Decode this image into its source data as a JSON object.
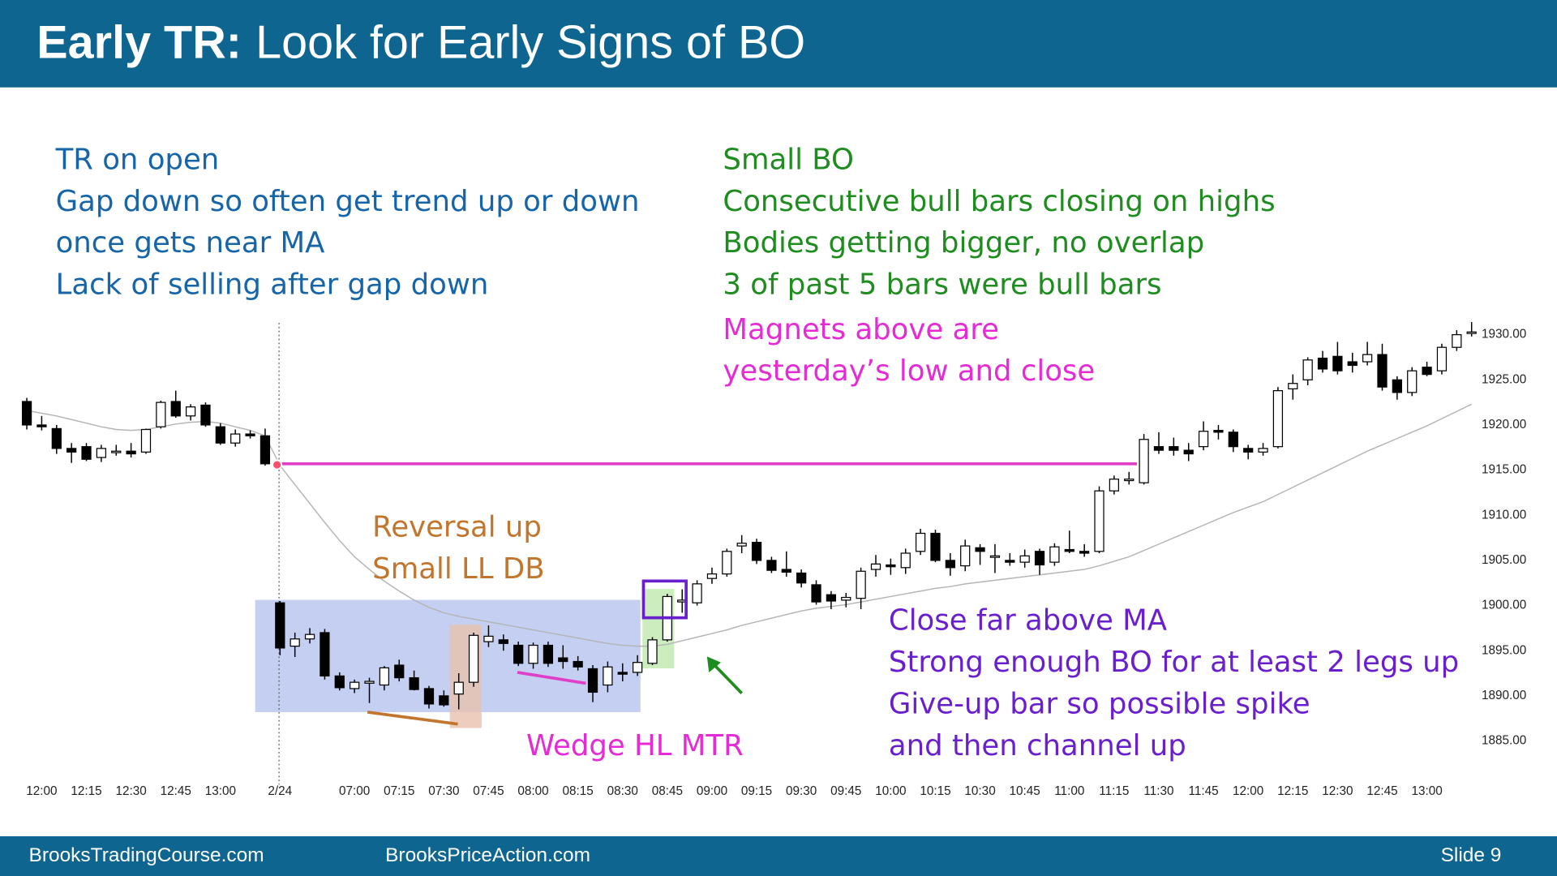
{
  "header": {
    "title_lead": "Early TR:",
    "title": "Look for Early Signs of BO"
  },
  "footer": {
    "left": "BrooksTradingCourse.com",
    "center": "BrooksPriceAction.com",
    "right": "Slide  9"
  },
  "chart_data": {
    "type": "candlestick",
    "categories": [
      null,
      "12:00",
      null,
      null,
      "12:15",
      null,
      null,
      "12:30",
      null,
      null,
      "12:45",
      null,
      null,
      "13:00",
      null,
      null,
      null,
      "2/24",
      null,
      null,
      null,
      null,
      "07:00",
      null,
      null,
      "07:15",
      null,
      null,
      "07:30",
      null,
      null,
      "07:45",
      null,
      null,
      "08:00",
      null,
      null,
      "08:15",
      null,
      null,
      "08:30",
      null,
      null,
      "08:45",
      null,
      null,
      "09:00",
      null,
      null,
      "09:15",
      null,
      null,
      "09:30",
      null,
      null,
      "09:45",
      null,
      null,
      "10:00",
      null,
      null,
      "10:15",
      null,
      null,
      "10:30",
      null,
      null,
      "10:45",
      null,
      null,
      "11:00",
      null,
      null,
      "11:15",
      null,
      null,
      "11:30",
      null,
      null,
      "11:45",
      null,
      null,
      "12:00",
      null,
      null,
      "12:15",
      null,
      null,
      "12:30",
      null,
      null,
      "12:45",
      null,
      null,
      "13:00",
      null,
      null,
      null
    ],
    "open": [
      1922.6,
      1920,
      1919.6,
      1917.4,
      1917.6,
      1916.4,
      1917,
      1917.1,
      1917,
      1919.8,
      1922.6,
      1921,
      1922.2,
      1919.8,
      1918,
      1919,
      1918.8,
      1900.3,
      1895.5,
      1896.3,
      1897,
      1892.2,
      1890.8,
      1891.4,
      1891.2,
      1893.4,
      1892,
      1890.8,
      1890,
      1890.2,
      1891.5,
      1896,
      1896.2,
      1895.6,
      1893.6,
      1895.6,
      1894.2,
      1893.8,
      1893,
      1891.2,
      1892.6,
      1892.6,
      1893.6,
      1896.2,
      1900.4,
      1900.3,
      1903,
      1903.5,
      1906.6,
      1907,
      1905,
      1904,
      1903.6,
      1902.3,
      1901.2,
      1900.6,
      1900.8,
      1904,
      1904.5,
      1904.2,
      1906,
      1908,
      1905,
      1904.4,
      1906.4,
      1905.4,
      1905,
      1904.8,
      1906,
      1904.8,
      1906.2,
      1906,
      1906,
      1912.7,
      1914,
      1913.6,
      1917.6,
      1917.6,
      1917.2,
      1917.6,
      1919.4,
      1919.2,
      1917.4,
      1917,
      1917.6,
      1924,
      1925,
      1927.4,
      1927.6,
      1927,
      1927,
      1927.8,
      1925,
      1923.6,
      1926.4,
      1926,
      1928.6,
      1930.2
    ],
    "high": [
      1923,
      1921,
      1920,
      1918,
      1918,
      1917.8,
      1917.8,
      1918,
      1919.6,
      1922.7,
      1923.8,
      1922.3,
      1922.5,
      1920.2,
      1919.5,
      1919.4,
      1919.6,
      1900.5,
      1897,
      1897.5,
      1897.4,
      1892.6,
      1891.8,
      1892,
      1893.3,
      1894,
      1892.8,
      1891.1,
      1890.6,
      1892.5,
      1897,
      1897.8,
      1896.8,
      1896,
      1895.9,
      1896,
      1895.6,
      1894.4,
      1893.4,
      1893.8,
      1893.6,
      1894.5,
      1896.5,
      1901.3,
      1901.8,
      1902.8,
      1904.2,
      1906.3,
      1907.8,
      1907.4,
      1905.4,
      1906,
      1904,
      1902.8,
      1901.6,
      1901.4,
      1904.2,
      1905.6,
      1905.2,
      1906.3,
      1908.5,
      1908.4,
      1905.8,
      1907.3,
      1906.8,
      1906.8,
      1905.8,
      1906.2,
      1906.3,
      1906.9,
      1908.3,
      1906.8,
      1913.2,
      1914.4,
      1914.8,
      1919,
      1919.2,
      1918.6,
      1918,
      1920.4,
      1920,
      1919.5,
      1917.8,
      1918,
      1924.2,
      1925.6,
      1927.5,
      1928.2,
      1929.2,
      1928,
      1929.2,
      1929,
      1925.4,
      1926.4,
      1927,
      1929,
      1930.5,
      1931.4
    ],
    "low": [
      1919.5,
      1919.4,
      1916.8,
      1915.8,
      1916,
      1915.9,
      1916.6,
      1916.4,
      1916.8,
      1919.6,
      1920.8,
      1920.5,
      1919.8,
      1917.8,
      1917.6,
      1918.5,
      1915.5,
      1894.5,
      1894.3,
      1895.8,
      1891.8,
      1890.6,
      1890.3,
      1889.2,
      1890.6,
      1891.6,
      1890.6,
      1888.6,
      1888.8,
      1888.5,
      1891,
      1895.4,
      1895,
      1893.3,
      1893,
      1893.2,
      1893,
      1892.8,
      1889.3,
      1890.4,
      1891.6,
      1892.2,
      1893.4,
      1896,
      1899.2,
      1900,
      1902.4,
      1903.2,
      1905.8,
      1904.6,
      1903.6,
      1903.2,
      1902,
      1900.1,
      1899.6,
      1899.8,
      1899.6,
      1903.2,
      1903.4,
      1903.5,
      1905.6,
      1904.8,
      1903.3,
      1903.8,
      1904.5,
      1903.6,
      1904.4,
      1904.2,
      1903.4,
      1904.4,
      1905.8,
      1905.4,
      1905.8,
      1912.3,
      1913.4,
      1913.4,
      1916.8,
      1916.6,
      1916,
      1917.2,
      1918.4,
      1917,
      1916.2,
      1916.6,
      1917.4,
      1922.8,
      1924.4,
      1925.8,
      1925.6,
      1925.8,
      1926.6,
      1923.8,
      1922.8,
      1923.2,
      1925.4,
      1925.6,
      1928.2,
      1929.8
    ],
    "close": [
      1920,
      1919.8,
      1917.4,
      1917,
      1916.2,
      1917.4,
      1917.1,
      1916.8,
      1919.5,
      1922.5,
      1921,
      1922,
      1920,
      1918,
      1919,
      1918.8,
      1915.7,
      1895.3,
      1896.3,
      1896.8,
      1892.2,
      1890.9,
      1891.5,
      1891.6,
      1893.1,
      1892,
      1890.7,
      1889.1,
      1889,
      1891.5,
      1896.7,
      1896.6,
      1895.8,
      1893.6,
      1895.6,
      1893.6,
      1893.8,
      1893.2,
      1890.4,
      1893.2,
      1892.4,
      1893.7,
      1896.2,
      1901,
      1900.6,
      1902.4,
      1903.5,
      1906,
      1906.9,
      1905,
      1903.9,
      1903.7,
      1902.5,
      1900.4,
      1900.5,
      1900.9,
      1903.8,
      1904.6,
      1904.3,
      1905.8,
      1908,
      1905,
      1904.2,
      1906.6,
      1906,
      1905.5,
      1904.8,
      1905.5,
      1904.5,
      1906.5,
      1906,
      1905.8,
      1912.7,
      1914,
      1914,
      1918.4,
      1917.2,
      1917.2,
      1916.8,
      1919.3,
      1919.2,
      1917.6,
      1917,
      1917.4,
      1923.8,
      1924.6,
      1927.2,
      1926.2,
      1926,
      1926.6,
      1927.8,
      1924.2,
      1923.6,
      1926,
      1925.6,
      1928.6,
      1930,
      1930.3
    ],
    "ma": [
      1921.6,
      1921.3,
      1921,
      1920.6,
      1920.2,
      1919.8,
      1919.5,
      1919.4,
      1919.5,
      1919.8,
      1920.1,
      1920.3,
      1920.4,
      1920.2,
      1919.8,
      1919.4,
      1918.8,
      1915.5,
      1913.4,
      1911.3,
      1909.2,
      1907.2,
      1905.4,
      1904,
      1902.7,
      1901.6,
      1900.6,
      1899.8,
      1899.2,
      1898.8,
      1898.5,
      1898.2,
      1897.9,
      1897.6,
      1897.3,
      1897,
      1896.7,
      1896.4,
      1896.1,
      1895.8,
      1895.6,
      1895.5,
      1895.5,
      1895.7,
      1896.1,
      1896.5,
      1896.9,
      1897.3,
      1897.8,
      1898.2,
      1898.6,
      1899,
      1899.4,
      1899.7,
      1899.9,
      1900.1,
      1900.4,
      1900.7,
      1901,
      1901.3,
      1901.6,
      1901.9,
      1902.1,
      1902.4,
      1902.6,
      1902.8,
      1903,
      1903.2,
      1903.4,
      1903.6,
      1903.8,
      1904,
      1904.4,
      1904.9,
      1905.4,
      1906.1,
      1906.8,
      1907.5,
      1908.2,
      1908.9,
      1909.6,
      1910.3,
      1910.9,
      1911.5,
      1912.3,
      1913.1,
      1913.9,
      1914.7,
      1915.5,
      1916.3,
      1917.1,
      1917.8,
      1918.5,
      1919.2,
      1919.9,
      1920.7,
      1921.5,
      1922.3
    ],
    "bull_color": "#ffffff",
    "bear_color": "#000000",
    "ma_color": "#b5b5b5",
    "ylim": [
      1881,
      1932
    ],
    "yticks": [
      {
        "value": 1885,
        "label": "1885.00"
      },
      {
        "value": 1890,
        "label": "1890.00"
      },
      {
        "value": 1895,
        "label": "1895.00"
      },
      {
        "value": 1900,
        "label": "1900.00"
      },
      {
        "value": 1905,
        "label": "1905.00"
      },
      {
        "value": 1910,
        "label": "1910.00"
      },
      {
        "value": 1915,
        "label": "1915.00"
      },
      {
        "value": 1920,
        "label": "1920.00"
      },
      {
        "value": 1925,
        "label": "1925.00"
      },
      {
        "value": 1930,
        "label": "1930.00"
      }
    ],
    "grid": false,
    "annotations": [
      {
        "color": "#1565a8",
        "lines": [
          "TR on open",
          "Gap down so often get trend up or down",
          "once gets near MA",
          "Lack of selling after gap down"
        ]
      },
      {
        "color": "#1e8c1e",
        "lines": [
          "Small BO",
          "Consecutive bull bars closing on highs",
          "Bodies getting bigger, no overlap",
          "3 of past 5 bars were bull bars"
        ]
      },
      {
        "color": "#e52ad6",
        "lines": [
          "Magnets above are",
          "yesterday’s low and close"
        ]
      },
      {
        "color": "#c2762d",
        "lines": [
          "Reversal up",
          "Small LL DB"
        ]
      },
      {
        "color": "#e52ad6",
        "lines": [
          "Wedge HL MTR"
        ]
      },
      {
        "color": "#6a1fcf",
        "lines": [
          "Close far above MA",
          "Strong enough BO for at least 2 legs up",
          "Give-up bar so possible spike",
          "and then channel up"
        ]
      }
    ]
  }
}
